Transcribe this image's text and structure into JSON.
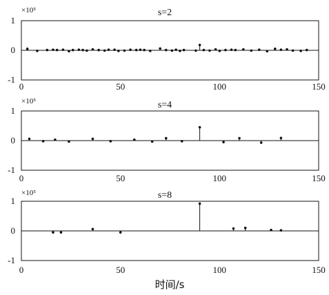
{
  "x_label": "时间/s",
  "chart_data": [
    {
      "type": "stem",
      "title": "s=2",
      "scale_label": "×10⁵",
      "xlim": [
        0,
        150
      ],
      "ylim": [
        -1,
        1
      ],
      "xticks": [
        0,
        50,
        100,
        150
      ],
      "yticks": [
        -1,
        0,
        1
      ],
      "xtick_labels": [
        "0",
        "50",
        "100",
        "150"
      ],
      "ytick_labels": [
        "-1",
        "0",
        "1"
      ],
      "x": [
        3,
        8,
        13,
        16,
        18,
        21,
        24,
        26,
        29,
        31,
        33,
        36,
        39,
        42,
        44,
        47,
        49,
        52,
        55,
        58,
        60,
        62,
        65,
        70,
        73,
        76,
        78,
        80,
        82,
        88,
        90,
        92,
        95,
        98,
        100,
        103,
        106,
        108,
        112,
        116,
        120,
        124,
        128,
        131,
        134,
        137,
        141,
        144
      ],
      "values": [
        0.05,
        -0.02,
        0.01,
        0.02,
        0.01,
        0.02,
        -0.03,
        0.01,
        0.02,
        0.01,
        -0.01,
        0.03,
        0.01,
        -0.01,
        0.02,
        0.02,
        -0.02,
        -0.01,
        0.02,
        0.01,
        0.02,
        0.01,
        -0.02,
        0.06,
        0.01,
        -0.01,
        0.02,
        -0.02,
        0.01,
        -0.01,
        0.18,
        0.01,
        -0.01,
        0.03,
        -0.02,
        0.01,
        0.02,
        0.01,
        0.03,
        -0.01,
        0.02,
        -0.03,
        0.05,
        0.02,
        0.03,
        -0.01,
        -0.02,
        0.01
      ]
    },
    {
      "type": "stem",
      "title": "s=4",
      "scale_label": "×10⁵",
      "xlim": [
        0,
        150
      ],
      "ylim": [
        -1,
        1
      ],
      "xticks": [
        0,
        50,
        100,
        150
      ],
      "yticks": [
        -1,
        0,
        1
      ],
      "xtick_labels": [
        "0",
        "50",
        "100",
        "150"
      ],
      "ytick_labels": [
        "-1",
        "0",
        "1"
      ],
      "x": [
        4,
        11,
        17,
        24,
        36,
        45,
        57,
        66,
        73,
        81,
        90,
        102,
        110,
        121,
        131
      ],
      "values": [
        0.06,
        -0.02,
        0.03,
        -0.03,
        0.06,
        -0.02,
        0.03,
        -0.03,
        0.08,
        -0.02,
        0.45,
        -0.05,
        0.08,
        -0.07,
        0.09
      ]
    },
    {
      "type": "stem",
      "title": "s=8",
      "scale_label": "×10⁵",
      "xlim": [
        0,
        150
      ],
      "ylim": [
        -1,
        1
      ],
      "xticks": [
        0,
        50,
        100,
        150
      ],
      "yticks": [
        -1,
        0,
        1
      ],
      "xtick_labels": [
        "0",
        "50",
        "100",
        "150"
      ],
      "ytick_labels": [
        "-1",
        "0",
        "1"
      ],
      "x": [
        16,
        20,
        36,
        50,
        90,
        107,
        113,
        126,
        131
      ],
      "values": [
        -0.05,
        -0.05,
        0.06,
        -0.05,
        0.92,
        0.08,
        0.1,
        0.03,
        0.02
      ]
    }
  ]
}
